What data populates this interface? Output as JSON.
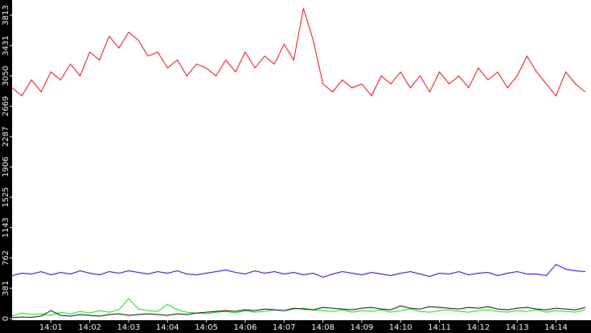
{
  "chart_data": {
    "type": "line",
    "x": [
      0,
      0.25,
      0.5,
      0.75,
      1,
      1.25,
      1.5,
      1.75,
      2,
      2.25,
      2.5,
      2.75,
      3,
      3.25,
      3.5,
      3.75,
      4,
      4.25,
      4.5,
      4.75,
      5,
      5.25,
      5.5,
      5.75,
      6,
      6.25,
      6.5,
      6.75,
      7,
      7.25,
      7.5,
      7.75,
      8,
      8.25,
      8.5,
      8.75,
      9,
      9.25,
      9.5,
      9.75,
      10,
      10.25,
      10.5,
      10.75,
      11,
      11.25,
      11.5,
      11.75,
      12,
      12.25,
      12.5,
      12.75,
      13,
      13.25,
      13.5,
      13.75,
      14,
      14.25,
      14.5,
      14.75
    ],
    "xlim": [
      0,
      14.9
    ],
    "xticks": [
      {
        "value": 1,
        "label": "14:01"
      },
      {
        "value": 2,
        "label": "14:02"
      },
      {
        "value": 3,
        "label": "14:03"
      },
      {
        "value": 4,
        "label": "14:04"
      },
      {
        "value": 5,
        "label": "14:05"
      },
      {
        "value": 6,
        "label": "14:06"
      },
      {
        "value": 7,
        "label": "14:07"
      },
      {
        "value": 8,
        "label": "14:08"
      },
      {
        "value": 9,
        "label": "14:09"
      },
      {
        "value": 10,
        "label": "14:10"
      },
      {
        "value": 11,
        "label": "14:11"
      },
      {
        "value": 12,
        "label": "14:12"
      },
      {
        "value": 13,
        "label": "14:13"
      },
      {
        "value": 14,
        "label": "14:14"
      }
    ],
    "ylim": [
      0,
      3813
    ],
    "yticks": [
      0,
      381,
      762,
      1143,
      1525,
      1906,
      2287,
      2669,
      3050,
      3431,
      3813
    ],
    "series": [
      {
        "color": "#e00000",
        "values": [
          2900,
          2800,
          3000,
          2850,
          3100,
          3000,
          3200,
          3050,
          3350,
          3250,
          3550,
          3400,
          3600,
          3500,
          3300,
          3350,
          3150,
          3250,
          3050,
          3200,
          3150,
          3050,
          3250,
          3100,
          3350,
          3150,
          3300,
          3200,
          3450,
          3250,
          3900,
          3500,
          2950,
          2850,
          3000,
          2900,
          2950,
          2800,
          3050,
          2950,
          3100,
          2900,
          3050,
          2850,
          3100,
          2950,
          3050,
          2900,
          3150,
          3000,
          3100,
          2900,
          3050,
          3300,
          3100,
          2950,
          2800,
          3100,
          2950,
          2850
        ]
      },
      {
        "color": "#0000c0",
        "values": [
          540,
          570,
          560,
          590,
          550,
          580,
          560,
          600,
          570,
          550,
          590,
          570,
          600,
          580,
          560,
          590,
          570,
          600,
          560,
          550,
          570,
          590,
          610,
          580,
          560,
          600,
          570,
          590,
          560,
          580,
          550,
          570,
          520,
          560,
          590,
          570,
          550,
          580,
          560,
          540,
          570,
          590,
          560,
          530,
          570,
          560,
          590,
          550,
          570,
          580,
          540,
          570,
          590,
          560,
          560,
          540,
          680,
          620,
          600,
          590
        ]
      },
      {
        "color": "#00e000",
        "values": [
          30,
          70,
          50,
          60,
          40,
          80,
          60,
          90,
          70,
          100,
          80,
          110,
          250,
          120,
          100,
          90,
          180,
          110,
          80,
          70,
          60,
          80,
          90,
          70,
          100,
          80,
          90,
          110,
          100,
          120,
          130,
          110,
          100,
          90,
          110,
          80,
          100,
          90,
          110,
          80,
          100,
          120,
          90,
          80,
          100,
          110,
          90,
          80,
          100,
          110,
          90,
          80,
          100,
          90,
          110,
          80,
          100,
          90,
          80,
          110
        ]
      },
      {
        "color": "#000000",
        "values": [
          10,
          20,
          15,
          30,
          100,
          40,
          30,
          50,
          40,
          30,
          50,
          60,
          40,
          50,
          60,
          50,
          40,
          60,
          50,
          70,
          80,
          90,
          100,
          90,
          110,
          100,
          120,
          110,
          100,
          130,
          120,
          110,
          140,
          130,
          120,
          110,
          130,
          140,
          120,
          110,
          160,
          130,
          120,
          150,
          140,
          130,
          120,
          140,
          130,
          150,
          120,
          110,
          130,
          140,
          120,
          110,
          130,
          120,
          110,
          140
        ]
      }
    ]
  }
}
